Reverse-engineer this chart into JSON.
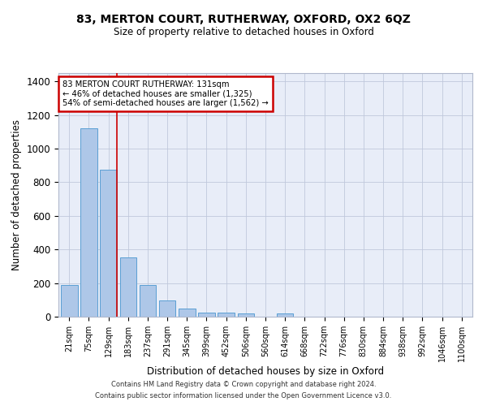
{
  "title1": "83, MERTON COURT, RUTHERWAY, OXFORD, OX2 6QZ",
  "title2": "Size of property relative to detached houses in Oxford",
  "xlabel": "Distribution of detached houses by size in Oxford",
  "ylabel": "Number of detached properties",
  "categories": [
    "21sqm",
    "75sqm",
    "129sqm",
    "183sqm",
    "237sqm",
    "291sqm",
    "345sqm",
    "399sqm",
    "452sqm",
    "506sqm",
    "560sqm",
    "614sqm",
    "668sqm",
    "722sqm",
    "776sqm",
    "830sqm",
    "884sqm",
    "938sqm",
    "992sqm",
    "1046sqm",
    "1100sqm"
  ],
  "bar_values": [
    190,
    1120,
    875,
    355,
    190,
    95,
    50,
    22,
    22,
    18,
    0,
    18,
    0,
    0,
    0,
    0,
    0,
    0,
    0,
    0,
    0
  ],
  "bar_color": "#aec7e8",
  "bar_edge_color": "#5a9fd4",
  "vline_color": "#cc0000",
  "vline_x_index": 2,
  "annotation_text": "83 MERTON COURT RUTHERWAY: 131sqm\n← 46% of detached houses are smaller (1,325)\n54% of semi-detached houses are larger (1,562) →",
  "annotation_box_facecolor": "#ffffff",
  "annotation_box_edgecolor": "#cc0000",
  "ylim": [
    0,
    1450
  ],
  "yticks": [
    0,
    200,
    400,
    600,
    800,
    1000,
    1200,
    1400
  ],
  "footer1": "Contains HM Land Registry data © Crown copyright and database right 2024.",
  "footer2": "Contains public sector information licensed under the Open Government Licence v3.0.",
  "plot_bg_color": "#e8edf8"
}
